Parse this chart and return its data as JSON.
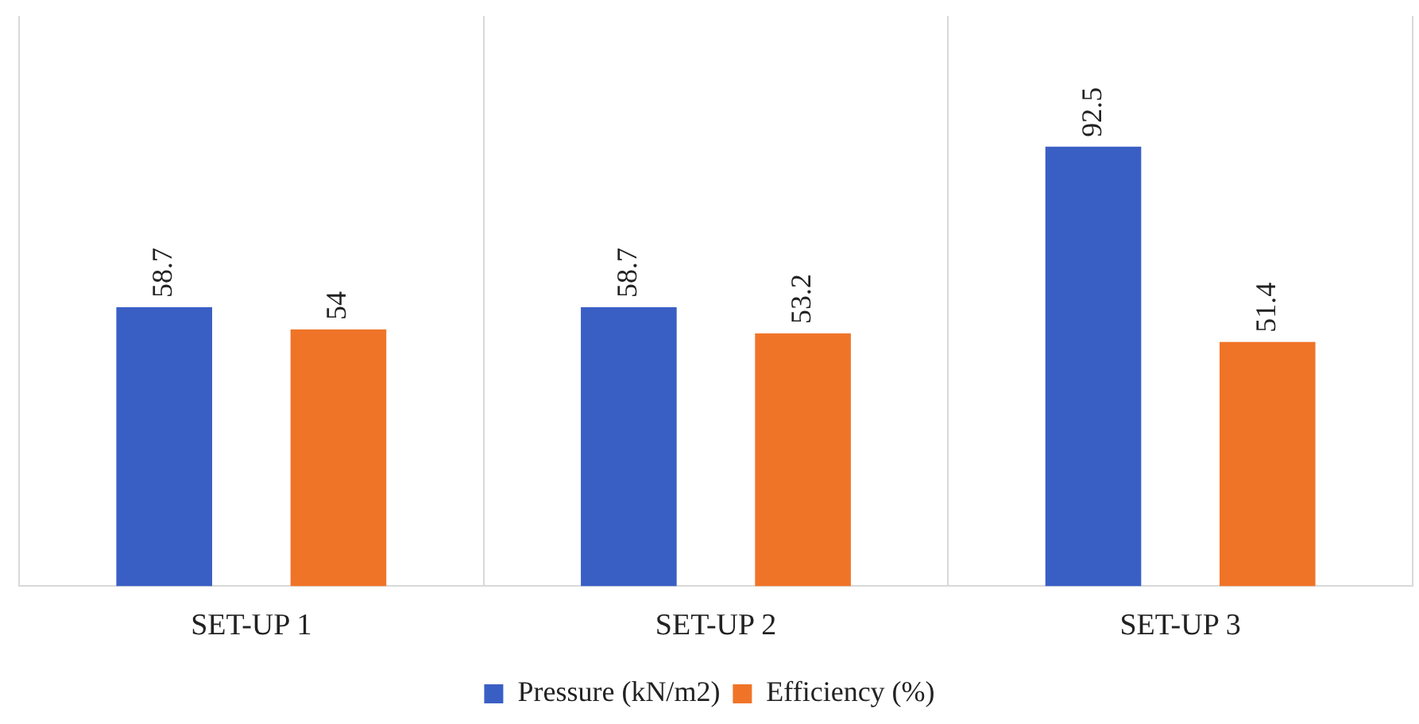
{
  "chart_data": {
    "type": "bar",
    "categories": [
      "SET-UP 1",
      "SET-UP 2",
      "SET-UP 3"
    ],
    "series": [
      {
        "name": "Pressure (kN/m2)",
        "color": "#3a5fc4",
        "values": [
          58.7,
          58.7,
          92.5
        ]
      },
      {
        "name": "Efficiency (%)",
        "color": "#f07428",
        "values": [
          54,
          53.2,
          51.4
        ]
      }
    ],
    "relative": false,
    "data_labels": true,
    "grid": "x",
    "legend": "bottom"
  }
}
